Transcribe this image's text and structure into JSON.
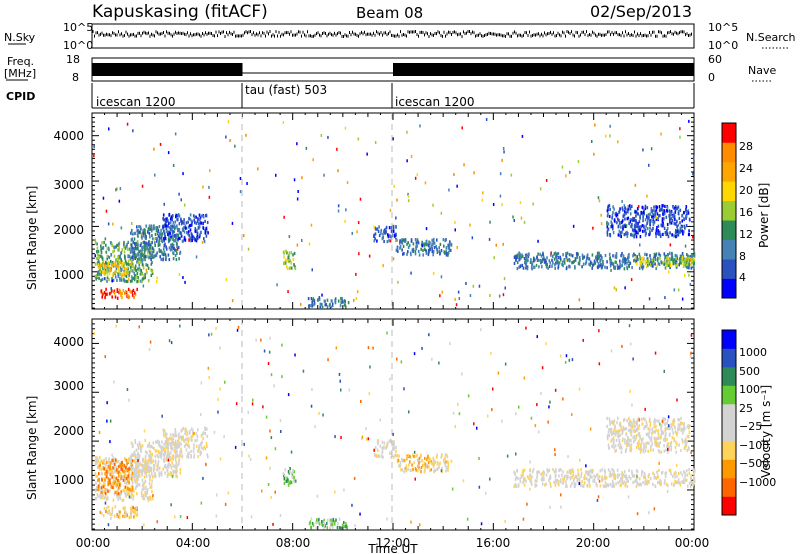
{
  "header": {
    "station": "Kapuskasing (fitACF)",
    "beam": "Beam 08",
    "date": "02/Sep/2013"
  },
  "colors": {
    "power_scale": [
      "#0000ff",
      "#2a52be",
      "#4682b4",
      "#2e8b57",
      "#9acd32",
      "#ffd700",
      "#ffa500",
      "#ff8c00",
      "#ff0000"
    ],
    "velocity_scale": [
      "#ff0000",
      "#ff6600",
      "#ff9900",
      "#ffd35a",
      "#d3d3d3",
      "#d3d3d3",
      "#66cc33",
      "#2e8b57",
      "#2a52be",
      "#0000ff"
    ]
  },
  "chart_data": [
    {
      "type": "line",
      "panel": "nsky-nsearch",
      "left_label": "N.Sky",
      "right_label": "N.Search",
      "left_ticks": [
        "10^5",
        "10^0"
      ],
      "right_ticks": [
        "10^5",
        "10^0"
      ]
    },
    {
      "type": "line",
      "panel": "freq-nave",
      "left_label": "Freq.",
      "left_unit": "[MHz]",
      "right_label": "Nave",
      "left_ticks": [
        18,
        8
      ],
      "right_ticks": [
        60,
        0
      ],
      "segments": [
        {
          "start_h": 0,
          "end_h": 6,
          "active": true
        },
        {
          "start_h": 6,
          "end_h": 12,
          "active": false
        },
        {
          "start_h": 12,
          "end_h": 24,
          "active": true
        }
      ]
    },
    {
      "type": "table",
      "panel": "cpid",
      "label": "CPID",
      "modes": [
        {
          "name": "icescan 1200",
          "start_h": 0,
          "end_h": 6
        },
        {
          "name": "tau (fast) 503",
          "start_h": 6,
          "end_h": 12
        },
        {
          "name": "icescan 1200",
          "start_h": 12,
          "end_h": 24
        }
      ]
    },
    {
      "type": "heatmap",
      "panel": "power",
      "ylabel": "Slant Range [km]",
      "yticks": [
        1000,
        2000,
        3000,
        4000
      ],
      "ylim": [
        180,
        4500
      ],
      "xlim": [
        0,
        24
      ],
      "colorbar_label": "Power [dB]",
      "colorbar_ticks": [
        4,
        8,
        12,
        16,
        20,
        24,
        28
      ],
      "clusters": [
        {
          "t0": 0.1,
          "t1": 2.4,
          "r0": 820,
          "r1": 1700,
          "level": 3
        },
        {
          "t0": 0.2,
          "t1": 1.6,
          "r0": 950,
          "r1": 1250,
          "level": 5
        },
        {
          "t0": 0.3,
          "t1": 1.8,
          "r0": 450,
          "r1": 650,
          "level": 7
        },
        {
          "t0": 1.5,
          "t1": 3.5,
          "r0": 1300,
          "r1": 2050,
          "level": 2
        },
        {
          "t0": 2.8,
          "t1": 4.6,
          "r0": 1700,
          "r1": 2300,
          "level": 1
        },
        {
          "t0": 7.6,
          "t1": 8.1,
          "r0": 1100,
          "r1": 1500,
          "level": 4
        },
        {
          "t0": 8.6,
          "t1": 10.2,
          "r0": 250,
          "r1": 450,
          "level": 2
        },
        {
          "t0": 11.2,
          "t1": 12.1,
          "r0": 1700,
          "r1": 2050,
          "level": 1
        },
        {
          "t0": 12.1,
          "t1": 14.3,
          "r0": 1400,
          "r1": 1750,
          "level": 2
        },
        {
          "t0": 16.8,
          "t1": 24.0,
          "r0": 1100,
          "r1": 1450,
          "level": 2
        },
        {
          "t0": 21.5,
          "t1": 24.0,
          "r0": 1150,
          "r1": 1350,
          "level": 4
        },
        {
          "t0": 20.5,
          "t1": 23.8,
          "r0": 1800,
          "r1": 2500,
          "level": 1
        }
      ]
    },
    {
      "type": "heatmap",
      "panel": "velocity",
      "ylabel": "Slant Range [km]",
      "yticks": [
        1000,
        2000,
        3000,
        4000
      ],
      "ylim": [
        180,
        4500
      ],
      "xlim": [
        0,
        24
      ],
      "xticks": [
        "00:00",
        "04:00",
        "08:00",
        "12:00",
        "16:00",
        "20:00",
        "00:00"
      ],
      "xlabel": "Time UT",
      "colorbar_label": "Velocity [m s⁻¹]",
      "colorbar_ticks": [
        "1000",
        "500",
        "100",
        "25",
        "−25",
        "−100",
        "−500",
        "−1000"
      ],
      "clusters": [
        {
          "t0": 0.1,
          "t1": 2.4,
          "r0": 820,
          "r1": 1700,
          "level": 4
        },
        {
          "t0": 0.2,
          "t1": 1.6,
          "r0": 950,
          "r1": 1650,
          "level": 2
        },
        {
          "t0": 0.3,
          "t1": 1.8,
          "r0": 450,
          "r1": 700,
          "level": 3
        },
        {
          "t0": 1.5,
          "t1": 3.5,
          "r0": 1300,
          "r1": 2050,
          "level": 4
        },
        {
          "t0": 2.8,
          "t1": 4.6,
          "r0": 1700,
          "r1": 2300,
          "level": 4
        },
        {
          "t0": 7.6,
          "t1": 8.1,
          "r0": 1100,
          "r1": 1500,
          "level": 6
        },
        {
          "t0": 8.6,
          "t1": 10.2,
          "r0": 250,
          "r1": 450,
          "level": 6
        },
        {
          "t0": 11.2,
          "t1": 12.1,
          "r0": 1700,
          "r1": 2050,
          "level": 4
        },
        {
          "t0": 12.1,
          "t1": 14.3,
          "r0": 1400,
          "r1": 1750,
          "level": 3
        },
        {
          "t0": 16.8,
          "t1": 24.0,
          "r0": 1100,
          "r1": 1450,
          "level": 4
        },
        {
          "t0": 20.5,
          "t1": 23.8,
          "r0": 1800,
          "r1": 2500,
          "level": 4
        }
      ]
    }
  ]
}
